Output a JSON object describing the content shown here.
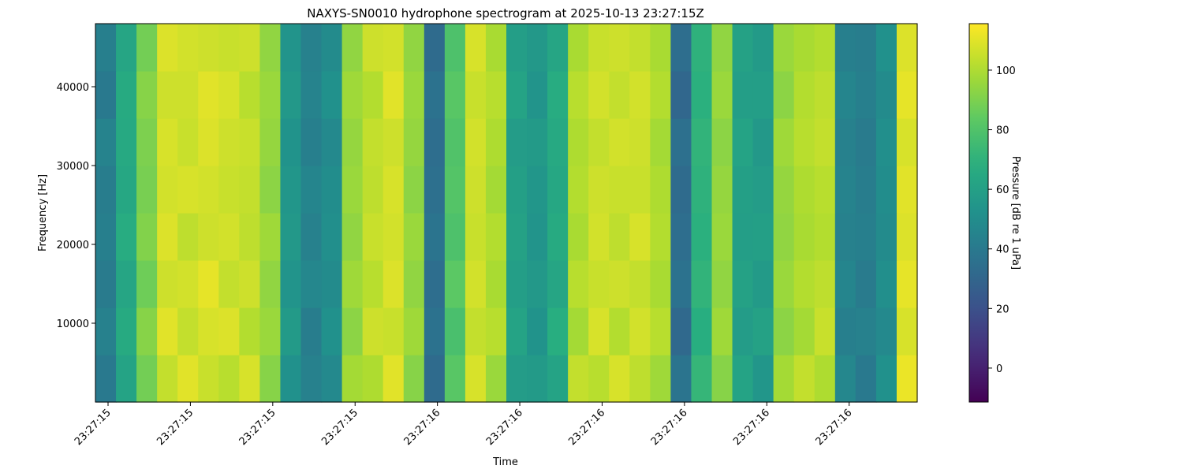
{
  "chart_data": {
    "type": "heatmap",
    "title": "NAXYS-SN0010 hydrophone spectrogram at 2025-10-13 23:27:15Z",
    "xlabel": "Time",
    "ylabel": "Frequency [Hz]",
    "colorbar_label": "Pressure [dB re 1 uPa]",
    "colormap": "viridis",
    "xlim": [
      15.377,
      16.874
    ],
    "ylim": [
      0,
      48000
    ],
    "clim": [
      -11.4,
      115.6
    ],
    "xticks": [
      {
        "value": 15.4,
        "label": "23:27:15"
      },
      {
        "value": 15.55,
        "label": "23:27:15"
      },
      {
        "value": 15.7,
        "label": "23:27:15"
      },
      {
        "value": 15.85,
        "label": "23:27:15"
      },
      {
        "value": 16.0,
        "label": "23:27:16"
      },
      {
        "value": 16.15,
        "label": "23:27:16"
      },
      {
        "value": 16.3,
        "label": "23:27:16"
      },
      {
        "value": 16.45,
        "label": "23:27:16"
      },
      {
        "value": 16.6,
        "label": "23:27:16"
      },
      {
        "value": 16.75,
        "label": "23:27:16"
      }
    ],
    "yticks": [
      10000,
      20000,
      30000,
      40000
    ],
    "cticks": [
      0,
      20,
      40,
      60,
      80,
      100
    ],
    "values": [
      [
        40,
        62,
        88,
        104,
        110,
        105,
        102,
        108,
        92,
        52,
        44,
        48,
        98,
        100,
        110,
        92,
        33,
        82,
        108,
        96,
        58,
        57,
        62,
        104,
        102,
        108,
        103,
        97,
        37,
        72,
        92,
        62,
        55,
        98,
        104,
        100,
        47,
        40,
        52,
        112
      ],
      [
        44,
        66,
        92,
        110,
        104,
        108,
        109,
        101,
        96,
        57,
        42,
        52,
        93,
        106,
        105,
        97,
        36,
        78,
        104,
        102,
        62,
        53,
        68,
        98,
        108,
        101,
        107,
        102,
        32,
        68,
        97,
        58,
        61,
        93,
        98,
        105,
        43,
        44,
        48,
        108
      ],
      [
        41,
        63,
        87,
        106,
        107,
        111,
        104,
        106,
        94,
        54,
        47,
        49,
        97,
        102,
        109,
        94,
        34,
        83,
        107,
        99,
        59,
        56,
        63,
        102,
        105,
        106,
        104,
        99,
        36,
        71,
        94,
        61,
        57,
        96,
        101,
        103,
        46,
        41,
        51,
        111
      ],
      [
        43,
        67,
        91,
        109,
        103,
        106,
        107,
        103,
        97,
        56,
        44,
        51,
        94,
        105,
        107,
        96,
        37,
        79,
        105,
        101,
        61,
        54,
        66,
        99,
        107,
        103,
        108,
        101,
        34,
        69,
        96,
        59,
        60,
        94,
        99,
        101,
        44,
        43,
        49,
        109
      ],
      [
        42,
        64,
        89,
        107,
        108,
        107,
        105,
        104,
        93,
        55,
        46,
        50,
        96,
        103,
        108,
        93,
        35,
        81,
        106,
        98,
        60,
        55,
        64,
        101,
        106,
        105,
        105,
        100,
        33,
        70,
        95,
        60,
        58,
        95,
        100,
        102,
        45,
        42,
        50,
        110
      ],
      [
        45,
        65,
        90,
        108,
        105,
        109,
        106,
        105,
        95,
        53,
        43,
        48,
        95,
        104,
        106,
        95,
        34,
        80,
        107,
        100,
        58,
        57,
        65,
        100,
        104,
        107,
        106,
        98,
        35,
        71,
        93,
        62,
        56,
        97,
        102,
        104,
        44,
        41,
        51,
        108
      ],
      [
        40,
        66,
        92,
        106,
        106,
        110,
        108,
        102,
        96,
        56,
        45,
        52,
        97,
        101,
        110,
        96,
        36,
        82,
        105,
        102,
        62,
        54,
        67,
        102,
        107,
        104,
        107,
        101,
        31,
        69,
        96,
        59,
        59,
        93,
        101,
        103,
        46,
        43,
        49,
        111
      ],
      [
        43,
        63,
        88,
        109,
        107,
        106,
        105,
        106,
        94,
        54,
        44,
        49,
        94,
        106,
        107,
        94,
        33,
        79,
        108,
        99,
        59,
        56,
        63,
        99,
        105,
        106,
        104,
        99,
        34,
        70,
        94,
        61,
        57,
        96,
        99,
        101,
        43,
        42,
        52,
        109
      ]
    ]
  }
}
